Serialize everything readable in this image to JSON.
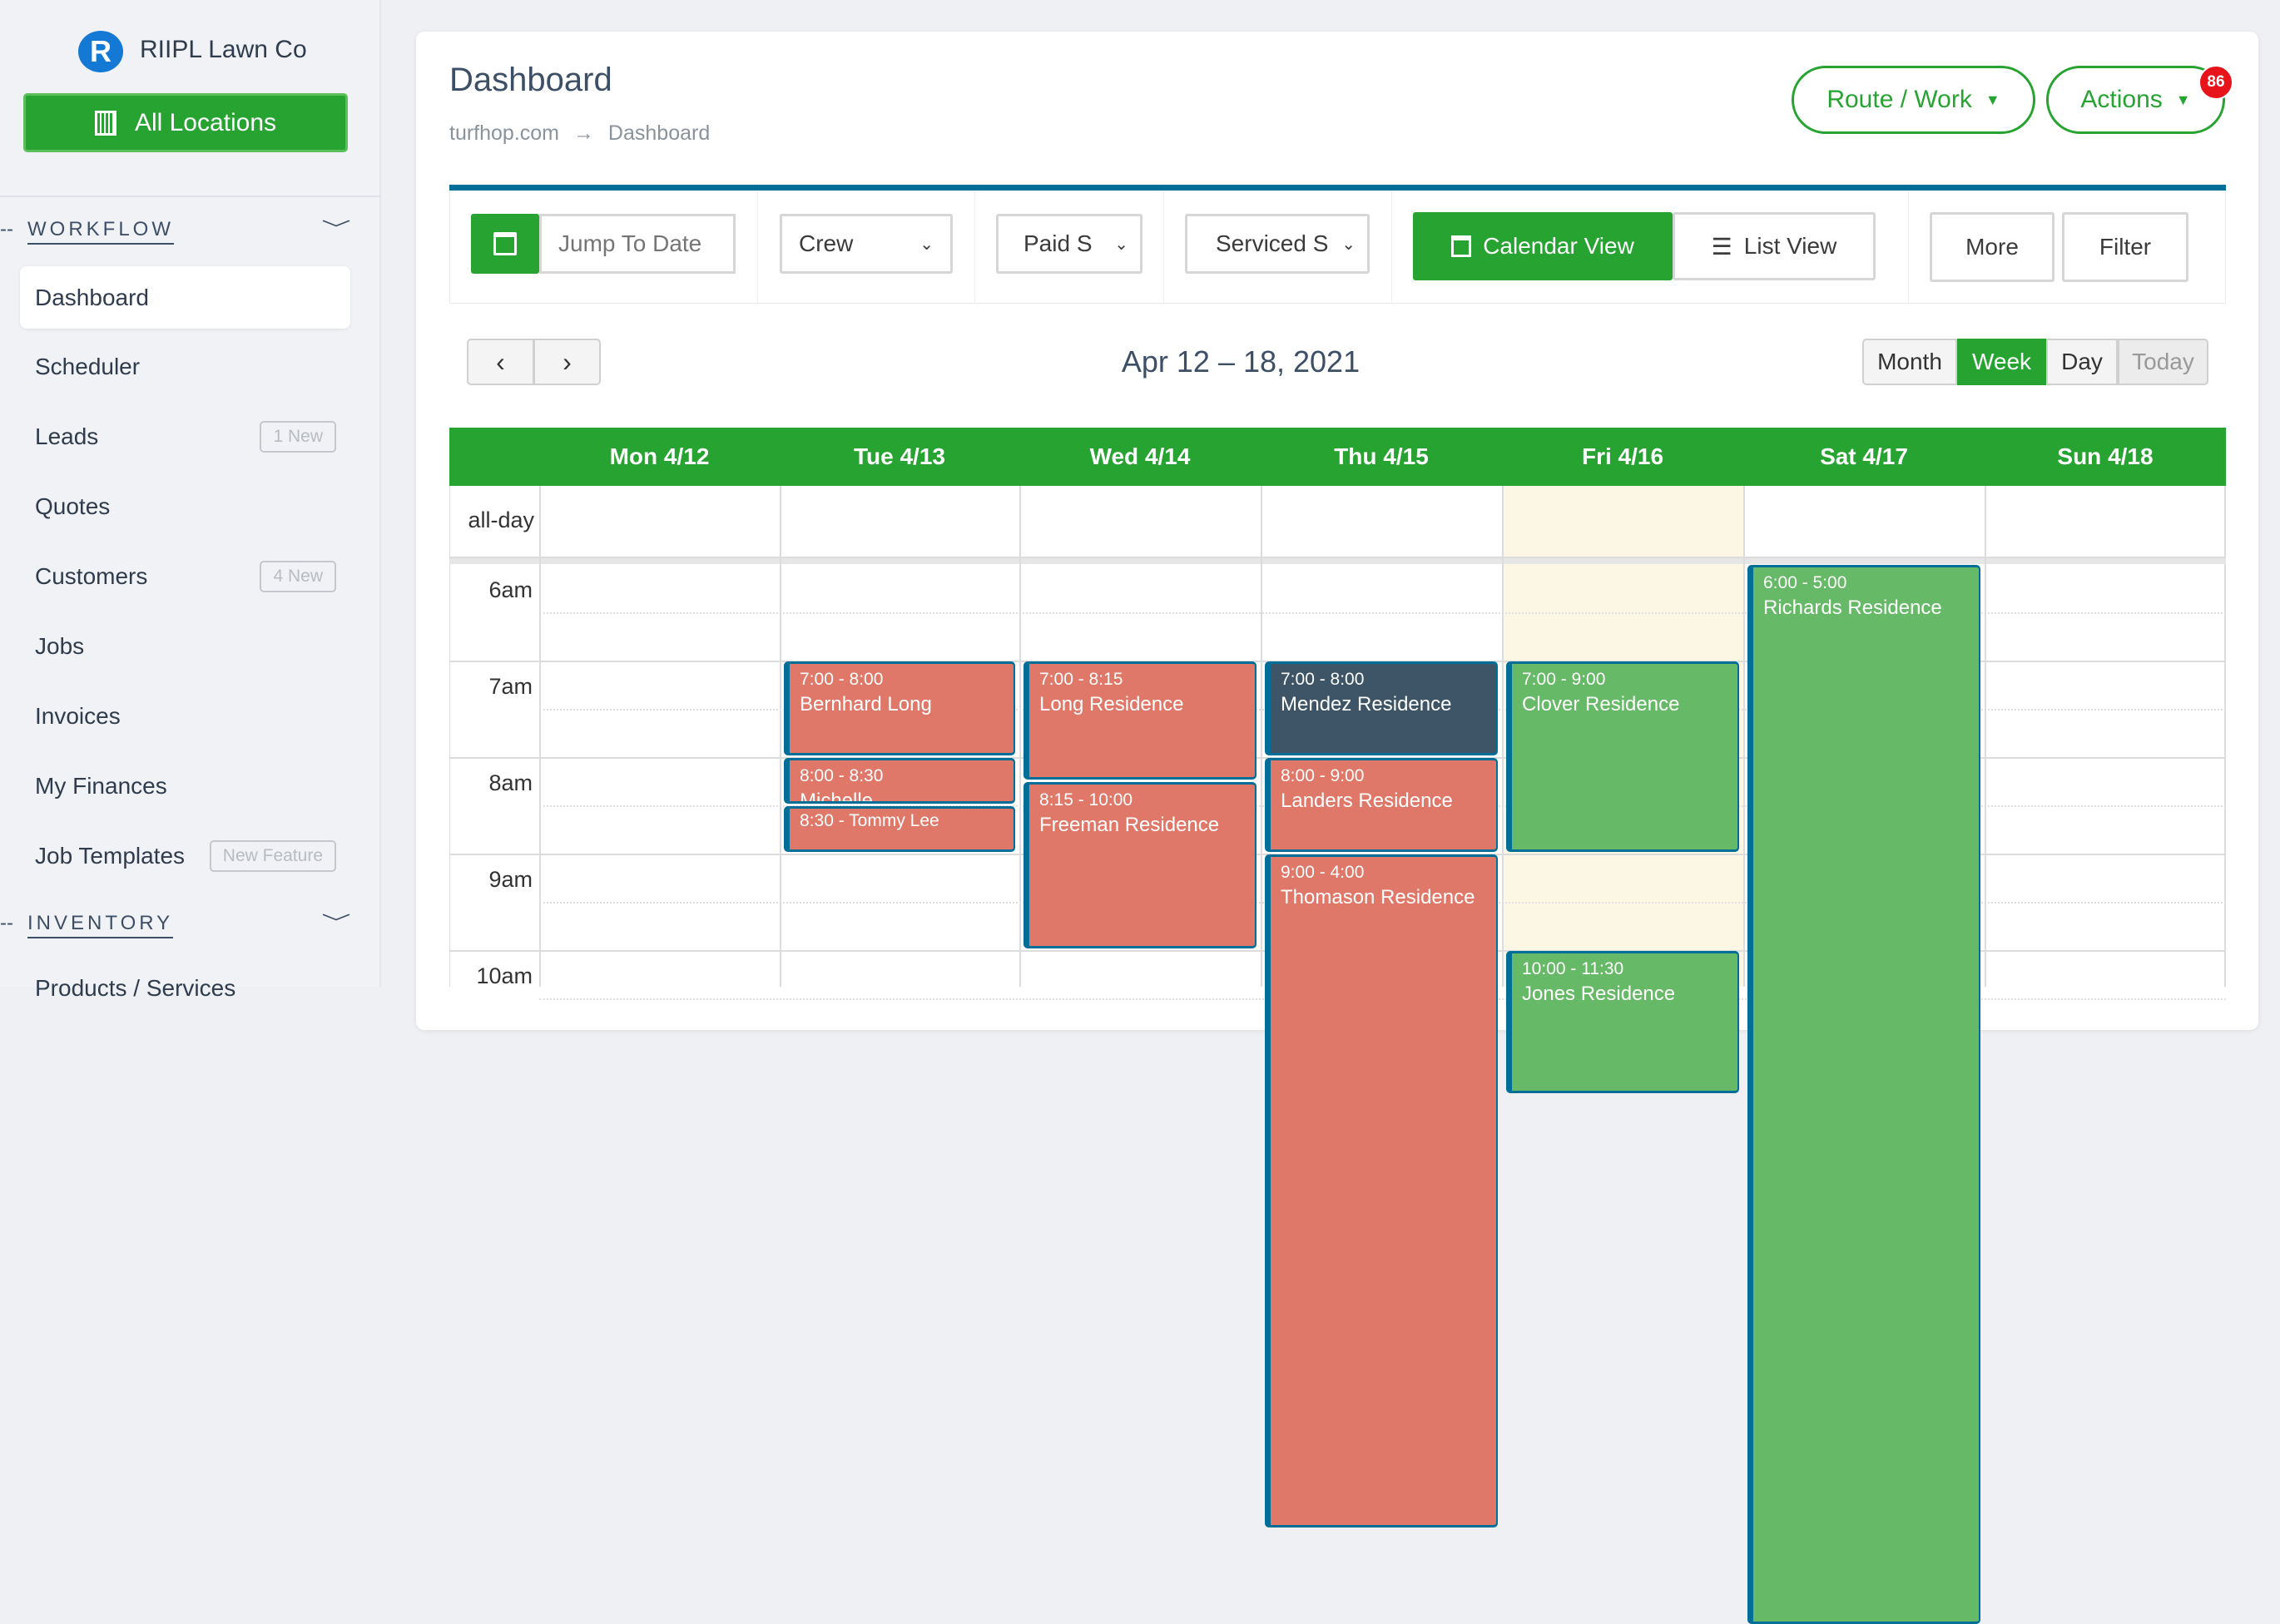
{
  "sidebar": {
    "logo_letter": "R",
    "company": "RIIPL Lawn Co",
    "location_button": "All Locations",
    "sections": [
      {
        "label": "WORKFLOW"
      },
      {
        "label": "INVENTORY"
      }
    ],
    "items": [
      {
        "label": "Dashboard",
        "active": true
      },
      {
        "label": "Scheduler"
      },
      {
        "label": "Leads",
        "badge": "1 New"
      },
      {
        "label": "Quotes"
      },
      {
        "label": "Customers",
        "badge": "4 New"
      },
      {
        "label": "Jobs"
      },
      {
        "label": "Invoices"
      },
      {
        "label": "My Finances"
      },
      {
        "label": "Job Templates",
        "badge": "New Feature"
      },
      {
        "label": "Products / Services"
      }
    ]
  },
  "header": {
    "title": "Dashboard",
    "breadcrumb": [
      "turfhop.com",
      "Dashboard"
    ],
    "route_button": "Route / Work",
    "actions_button": "Actions",
    "actions_badge": "86"
  },
  "toolbar": {
    "jump_placeholder": "Jump To Date",
    "crew": "Crew",
    "paid": "Paid S",
    "serviced": "Serviced S",
    "calendar_view": "Calendar View",
    "list_view": "List View",
    "more": "More",
    "filter": "Filter"
  },
  "calendar": {
    "range": "Apr 12 – 18, 2021",
    "views": [
      "Month",
      "Week",
      "Day",
      "Today"
    ],
    "active_view": "Week",
    "days": [
      "Mon 4/12",
      "Tue 4/13",
      "Wed 4/14",
      "Thu 4/15",
      "Fri 4/16",
      "Sat 4/17",
      "Sun 4/18"
    ],
    "today_index": 4,
    "allday_label": "all-day",
    "times": [
      "6am",
      "7am",
      "8am",
      "9am",
      "10am"
    ],
    "colors": {
      "header": "#27a332",
      "red": "#e07869",
      "green": "#66b966",
      "dark": "#3d5566",
      "today": "#fcf7e5",
      "border": "#006e96"
    },
    "events": [
      {
        "day": 1,
        "start": 7,
        "end": 8,
        "time": "7:00 - 8:00",
        "title": "Bernhard Long",
        "color": "red"
      },
      {
        "day": 1,
        "start": 8,
        "end": 8.5,
        "time": "8:00 - 8:30",
        "title": "Michelle",
        "color": "red"
      },
      {
        "day": 1,
        "start": 8.5,
        "end": 9,
        "time": "8:30 - Tommy Lee",
        "title": "",
        "color": "red",
        "inline": true
      },
      {
        "day": 2,
        "start": 7,
        "end": 8.25,
        "time": "7:00 - 8:15",
        "title": "Long Residence",
        "color": "red"
      },
      {
        "day": 2,
        "start": 8.25,
        "end": 10,
        "time": "8:15 - 10:00",
        "title": "Freeman Residence",
        "color": "red"
      },
      {
        "day": 3,
        "start": 7,
        "end": 8,
        "time": "7:00 - 8:00",
        "title": "Mendez Residence",
        "color": "dark"
      },
      {
        "day": 3,
        "start": 8,
        "end": 9,
        "time": "8:00 - 9:00",
        "title": "Landers Residence",
        "color": "red"
      },
      {
        "day": 3,
        "start": 9,
        "end": 16,
        "time": "9:00 - 4:00",
        "title": "Thomason Residence",
        "color": "red"
      },
      {
        "day": 4,
        "start": 7,
        "end": 9,
        "time": "7:00 - 9:00",
        "title": "Clover Residence",
        "color": "green"
      },
      {
        "day": 4,
        "start": 10,
        "end": 11.5,
        "time": "10:00 - 11:30",
        "title": "Jones Residence",
        "color": "green"
      },
      {
        "day": 5,
        "start": 6,
        "end": 17,
        "time": "6:00 - 5:00",
        "title": "Richards Residence",
        "color": "green"
      }
    ]
  }
}
